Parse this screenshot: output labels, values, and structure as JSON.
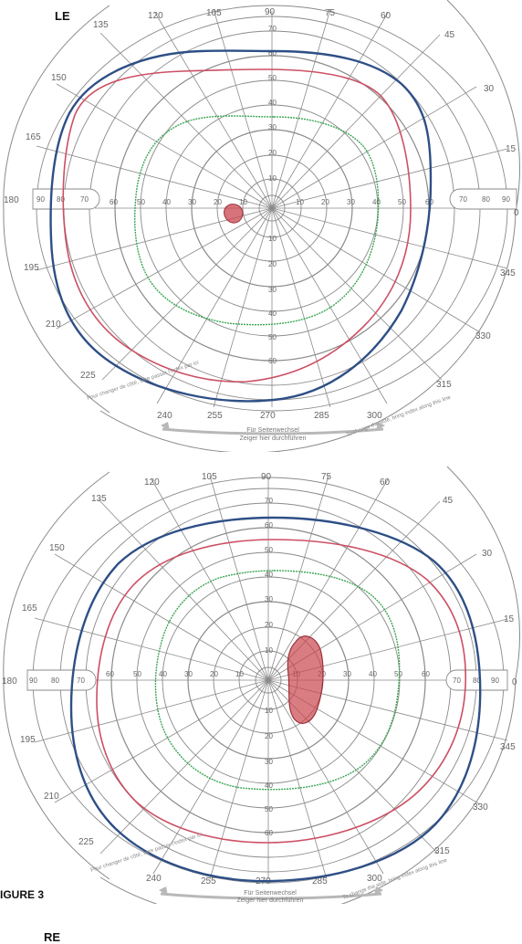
{
  "figure_label": "IGURE 3",
  "colors": {
    "grid": "#8a8a8a",
    "outer_isopter": "#2e4f86",
    "middle_isopter": "#cc4f63",
    "inner_isopter": "#3aa653",
    "scotoma": "#c9464f"
  },
  "charts": [
    {
      "eye_label": "LE",
      "angle_labels": {
        "a0": "0",
        "a15": "15",
        "a30": "30",
        "a45": "45",
        "a60": "60",
        "a75": "75",
        "a90": "90",
        "a105": "105",
        "a120": "120",
        "a135": "135",
        "a150": "150",
        "a165": "165",
        "a180": "180",
        "a195": "195",
        "a210": "210",
        "a225": "225",
        "a240": "240",
        "a255": "255",
        "a270": "270",
        "a285": "285",
        "a300": "300",
        "a315": "315",
        "a330": "330",
        "a345": "345"
      },
      "scale_up": [
        "10",
        "20",
        "30",
        "40",
        "50",
        "60",
        "70"
      ],
      "scale_down": [
        "10",
        "20",
        "30",
        "40",
        "50",
        "60"
      ],
      "scale_left": [
        "10",
        "20",
        "30",
        "40",
        "50",
        "60",
        "70",
        "80",
        "90"
      ],
      "scale_right": [
        "10",
        "20",
        "30",
        "40",
        "50",
        "60",
        "70",
        "80",
        "90"
      ],
      "footer_center_1": "Für Seitenwechsel",
      "footer_center_2": "Zeiger hier durchführen",
      "footer_left": "Pour changer de côté, faire passer l'index par ici",
      "footer_right": "To change the side, bring index along this line"
    },
    {
      "eye_label": "RE",
      "angle_labels": {
        "a0": "0",
        "a15": "15",
        "a30": "30",
        "a45": "45",
        "a60": "60",
        "a75": "75",
        "a90": "90",
        "a105": "105",
        "a120": "120",
        "a135": "135",
        "a150": "150",
        "a165": "165",
        "a180": "180",
        "a195": "195",
        "a210": "210",
        "a225": "225",
        "a240": "240",
        "a255": "255",
        "a270": "270",
        "a285": "285",
        "a300": "300",
        "a315": "315",
        "a330": "330",
        "a345": "345"
      },
      "scale_up": [
        "10",
        "20",
        "30",
        "40",
        "50",
        "60",
        "70"
      ],
      "scale_down": [
        "10",
        "20",
        "30",
        "40",
        "50",
        "60"
      ],
      "scale_left": [
        "10",
        "20",
        "30",
        "40",
        "50",
        "60",
        "70",
        "80",
        "90"
      ],
      "scale_right": [
        "10",
        "20",
        "30",
        "40",
        "50",
        "60",
        "70",
        "80",
        "90"
      ],
      "footer_center_1": "Für Seitenwechsel",
      "footer_center_2": "Zeiger hier durchführen",
      "footer_left": "Pour changer de côté, faire passer l'index par ici",
      "footer_right": "To change the side, bring index along this line"
    }
  ]
}
